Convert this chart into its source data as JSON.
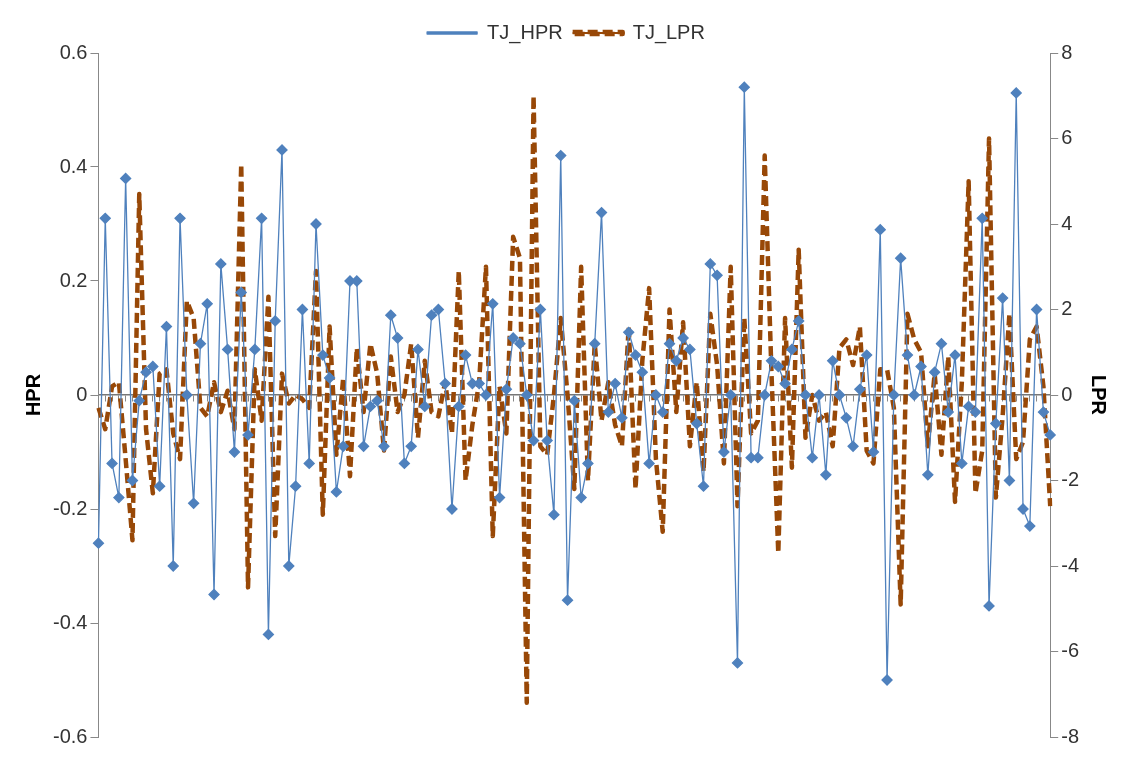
{
  "chart_data": {
    "type": "line",
    "categories": [
      null,
      null,
      null,
      null,
      null,
      null,
      null,
      null,
      null,
      null,
      null,
      null,
      null,
      null,
      null,
      null,
      null,
      null,
      null,
      null,
      null,
      null,
      null,
      null,
      null,
      null,
      null,
      null,
      null,
      null,
      null,
      null,
      null,
      null,
      null,
      null,
      null,
      null,
      null,
      null,
      null,
      null,
      null,
      null,
      null,
      null,
      null,
      null,
      null,
      null,
      null,
      null,
      null,
      null,
      null,
      null,
      null,
      null,
      null,
      null,
      null,
      null,
      null,
      null,
      null,
      null,
      null,
      null,
      null,
      null,
      null,
      null,
      null,
      null,
      null,
      null,
      null,
      null,
      null,
      null,
      null,
      null,
      null,
      null,
      null,
      null,
      null,
      null,
      null,
      null,
      null,
      null,
      null,
      null,
      null,
      null,
      null,
      null,
      null,
      null,
      null,
      null,
      null,
      null,
      null,
      null,
      null,
      null,
      null,
      null,
      null,
      null,
      null,
      null,
      null,
      null,
      null,
      null,
      null,
      null,
      null,
      null,
      null,
      null,
      null,
      null,
      null,
      null,
      null,
      null,
      null,
      null,
      null,
      null,
      null,
      null,
      null,
      null,
      null,
      null,
      null
    ],
    "series": [
      {
        "name": "TJ_HPR",
        "color": "#4f81bd",
        "marker": "diamond",
        "line_style": "solid",
        "values": [
          -0.26,
          0.31,
          -0.12,
          -0.18,
          0.38,
          -0.15,
          -0.01,
          0.04,
          0.05,
          -0.16,
          0.12,
          -0.3,
          0.31,
          0.0,
          -0.19,
          0.09,
          0.16,
          -0.35,
          0.23,
          0.08,
          -0.1,
          0.18,
          -0.07,
          0.08,
          0.31,
          -0.42,
          0.13,
          0.43,
          -0.3,
          -0.16,
          0.15,
          -0.12,
          0.3,
          0.07,
          0.03,
          -0.17,
          -0.09,
          0.2,
          0.2,
          -0.09,
          -0.02,
          -0.01,
          -0.09,
          0.14,
          0.1,
          -0.12,
          -0.09,
          0.08,
          -0.02,
          0.14,
          0.15,
          0.02,
          -0.2,
          -0.02,
          0.07,
          0.02,
          0.02,
          0.0,
          0.16,
          -0.18,
          0.01,
          0.1,
          0.09,
          0.0,
          -0.08,
          0.15,
          -0.08,
          -0.21,
          0.42,
          -0.36,
          -0.01,
          -0.18,
          -0.12,
          0.09,
          0.32,
          -0.03,
          0.02,
          -0.04,
          0.11,
          0.07,
          0.04,
          -0.12,
          0.0,
          -0.03,
          0.09,
          0.06,
          0.1,
          0.08,
          -0.05,
          -0.16,
          0.23,
          0.21,
          -0.1,
          0.0,
          -0.47,
          0.54,
          -0.11,
          -0.11,
          0.0,
          0.06,
          0.05,
          0.02,
          0.08,
          0.13,
          0.0,
          -0.11,
          0.0,
          -0.14,
          0.06,
          0.0,
          -0.04,
          -0.09,
          0.01,
          0.07,
          -0.1,
          0.29,
          -0.5,
          0.0,
          0.24,
          0.07,
          0.0,
          0.05,
          -0.14,
          0.04,
          0.09,
          -0.03,
          0.07,
          -0.12,
          -0.02,
          -0.03,
          0.31,
          -0.37,
          -0.05,
          0.17,
          -0.15,
          0.53,
          -0.2,
          -0.23,
          0.15,
          -0.03,
          -0.07
        ]
      },
      {
        "name": "TJ_LPR",
        "color": "#984807",
        "marker": "none",
        "line_style": "dashed",
        "axis": "y2",
        "values": [
          -0.3,
          -0.8,
          0.2,
          0.3,
          -1.5,
          -3.4,
          4.7,
          -0.8,
          -2.3,
          0.5,
          0.6,
          -0.9,
          -1.5,
          2.2,
          1.8,
          -0.3,
          -0.5,
          0.3,
          -0.4,
          0.1,
          -0.8,
          5.4,
          -4.5,
          0.6,
          -0.6,
          2.3,
          -3.3,
          0.5,
          -0.2,
          0.0,
          -0.1,
          -0.3,
          2.9,
          -2.8,
          1.6,
          -1.4,
          0.4,
          -1.9,
          1.1,
          -0.4,
          1.2,
          0.5,
          -1.3,
          0.9,
          -0.4,
          0.0,
          1.2,
          -1.0,
          0.8,
          -0.4,
          -0.5,
          0.3,
          -0.9,
          2.9,
          -2.0,
          -0.7,
          0.3,
          3.0,
          -3.3,
          0.2,
          -0.9,
          3.7,
          3.2,
          -7.2,
          7.0,
          -1.2,
          -1.4,
          0.0,
          1.8,
          0.0,
          -2.2,
          3.0,
          -2.0,
          1.2,
          -0.6,
          0.3,
          -0.7,
          -1.2,
          1.6,
          -2.2,
          0.8,
          2.5,
          -1.5,
          -3.2,
          2.0,
          -0.4,
          1.7,
          -1.2,
          0.3,
          -1.8,
          1.9,
          0.7,
          -1.6,
          3.0,
          -2.6,
          1.8,
          -0.9,
          -0.6,
          5.6,
          0.5,
          -3.7,
          1.8,
          -1.7,
          3.4,
          -1.0,
          0.0,
          -0.6,
          -0.4,
          -1.2,
          1.1,
          1.3,
          0.7,
          1.6,
          -1.3,
          -1.6,
          0.6,
          0.6,
          -0.3,
          -4.9,
          1.9,
          1.3,
          1.0,
          -1.2,
          0.5,
          -1.4,
          0.9,
          -2.5,
          0.3,
          5.0,
          -2.3,
          -1.3,
          6.0,
          -2.4,
          -0.5,
          1.9,
          -1.5,
          -1.1,
          1.3,
          1.6,
          0.2,
          -2.6
        ]
      }
    ],
    "ylabel": "HPR",
    "y2label": "LPR",
    "ylim": [
      -0.6,
      0.6
    ],
    "yticks": [
      -0.6,
      -0.4,
      -0.2,
      0,
      0.2,
      0.4,
      0.6
    ],
    "y2lim": [
      -8,
      8
    ],
    "y2ticks": [
      -8,
      -6,
      -4,
      -2,
      0,
      2,
      4,
      6,
      8
    ],
    "legend": "top"
  }
}
